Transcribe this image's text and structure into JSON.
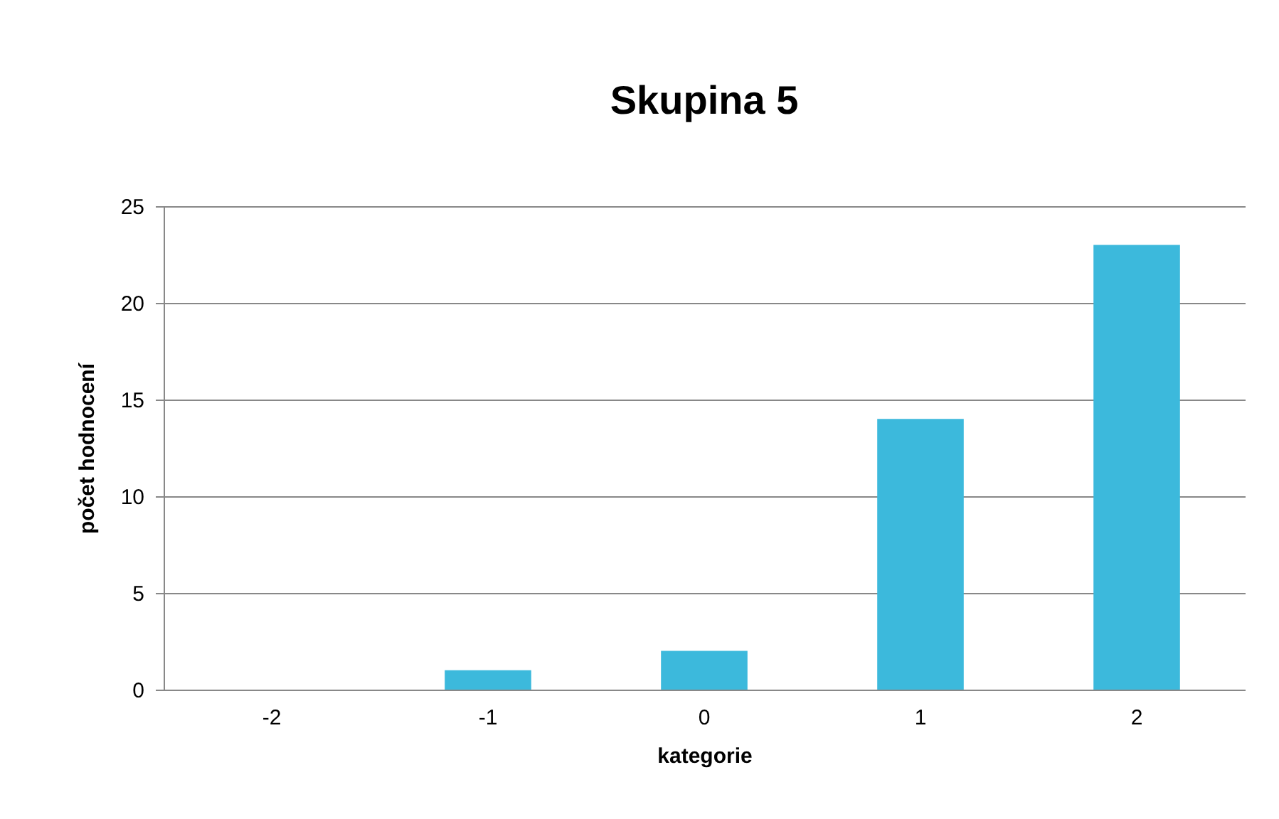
{
  "chart_data": {
    "type": "bar",
    "title": "Skupina 5",
    "xlabel": "kategorie",
    "ylabel": "počet hodnocení",
    "categories": [
      "-2",
      "-1",
      "0",
      "1",
      "2"
    ],
    "values": [
      0,
      1,
      2,
      14,
      23
    ],
    "color": "#3cb9dc",
    "ylim": [
      0,
      25
    ],
    "yticks": [
      0,
      5,
      10,
      15,
      20,
      25
    ],
    "grid": "y"
  }
}
